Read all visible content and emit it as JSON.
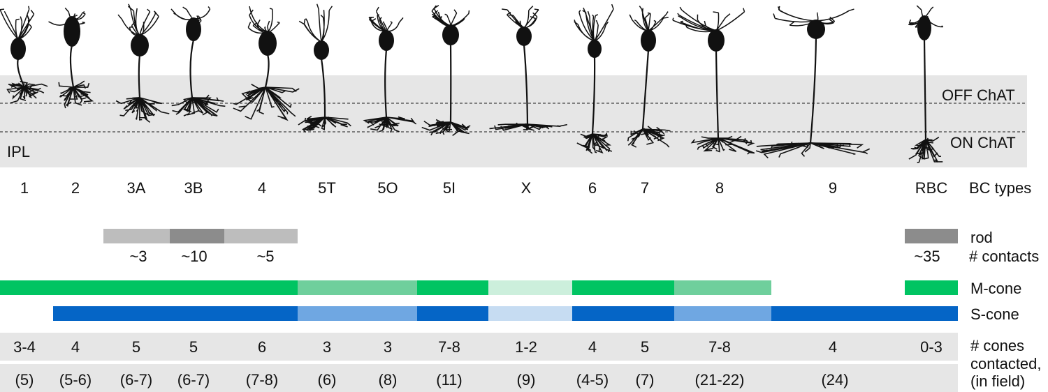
{
  "ipl_labels": {
    "ipl": "IPL",
    "off_chat": "OFF ChAT",
    "on_chat": "ON ChAT"
  },
  "row_labels": {
    "bc_types": "BC types",
    "rod": "rod",
    "contacts": "# contacts",
    "m_cone": "M-cone",
    "s_cone": "S-cone",
    "cones_line1": "# cones",
    "cones_line2": "contacted,",
    "cones_line3": "(in field)"
  },
  "bc_types": [
    "1",
    "2",
    "3A",
    "3B",
    "4",
    "5T",
    "5O",
    "5I",
    "X",
    "6",
    "7",
    "8",
    "9",
    "RBC"
  ],
  "rod_contact_labels": [
    "~3",
    "~10",
    "~5",
    "~35"
  ],
  "cones_contacted": [
    "3-4",
    "4",
    "5",
    "5",
    "6",
    "3",
    "3",
    "7-8",
    "1-2",
    "4",
    "5",
    "7-8",
    "4",
    "0-3"
  ],
  "cones_in_field": [
    "(5)",
    "(5-6)",
    "(6-7)",
    "(6-7)",
    "(7-8)",
    "(6)",
    "(8)",
    "(11)",
    "(9)",
    "(4-5)",
    "(7)",
    "(21-22)",
    "(24)"
  ],
  "colors": {
    "ipl_band": "#e6e6e6",
    "rod_light": "#bdbdbd",
    "rod_dark": "#8c8c8c",
    "m_cone_strong": "#00c462",
    "m_cone_medium": "#6fcf9c",
    "m_cone_weak": "#ccefdc",
    "s_cone_strong": "#0565c6",
    "s_cone_medium": "#6fa7e2",
    "s_cone_weak": "#c6dcf2",
    "cell": "#111111"
  }
}
